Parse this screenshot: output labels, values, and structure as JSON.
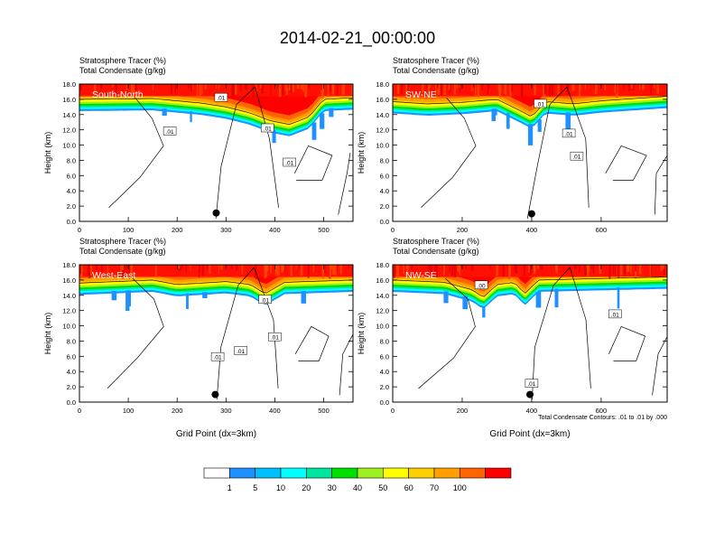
{
  "figure": {
    "title": "2014-02-21_00:00:00",
    "contour_note": "Total Condensate Contours: .01 to .01 by .000"
  },
  "panel_headers": {
    "tracer": "Stratosphere Tracer   (%)",
    "condensate": "Total Condensate   (g/kg)"
  },
  "colorbar": {
    "labels": [
      "1",
      "5",
      "10",
      "20",
      "30",
      "40",
      "50",
      "60",
      "70",
      "100"
    ],
    "colors": [
      "#ffffff",
      "#1e90ff",
      "#00bfff",
      "#00ffff",
      "#00e5a0",
      "#00e000",
      "#a0f020",
      "#ffff00",
      "#ffd000",
      "#ffa000",
      "#ff6400",
      "#ff0000"
    ]
  },
  "chart_data": [
    {
      "type": "heatmap",
      "id": "south-north",
      "panel_label": "South-North",
      "header": [
        "Stratosphere Tracer   (%)",
        "Total Condensate   (g/kg)"
      ],
      "ylabel": "Height (km)",
      "xlabel": "",
      "xlim": [
        0,
        560
      ],
      "ylim": [
        0,
        18
      ],
      "xticks": [
        "0",
        "100",
        "200",
        "300",
        "400",
        "500"
      ],
      "xtick_values": [
        0,
        100,
        200,
        300,
        400,
        500
      ],
      "yticks": [
        "0.0",
        "2.0",
        "4.0",
        "6.0",
        "8.0",
        "10.0",
        "12.0",
        "14.0",
        "16.0",
        "18.0"
      ],
      "tropopause_km": [
        [
          0,
          14.8
        ],
        [
          150,
          14.9
        ],
        [
          250,
          14.3
        ],
        [
          300,
          13.8
        ],
        [
          350,
          13.0
        ],
        [
          390,
          12.0
        ],
        [
          430,
          11.5
        ],
        [
          470,
          12.5
        ],
        [
          500,
          14.8
        ],
        [
          560,
          15.0
        ]
      ],
      "dot": {
        "x": 280,
        "y": 1.1
      },
      "contour_labels": [
        {
          "text": ".01",
          "x": 290,
          "y": 16.2
        },
        {
          "text": ".01",
          "x": 185,
          "y": 11.8
        },
        {
          "text": ".01",
          "x": 385,
          "y": 12.2
        },
        {
          "text": ".01",
          "x": 430,
          "y": 7.7
        }
      ]
    },
    {
      "type": "heatmap",
      "id": "sw-ne",
      "panel_label": "SW-NE",
      "header": [
        "Stratosphere Tracer   (%)",
        "Total Condensate   (g/kg)"
      ],
      "ylabel": "Height (km)",
      "xlabel": "",
      "xlim": [
        0,
        790
      ],
      "ylim": [
        0,
        18
      ],
      "xticks": [
        "0",
        "200",
        "400",
        "600"
      ],
      "xtick_values": [
        0,
        200,
        400,
        600
      ],
      "yticks": [
        "0.0",
        "2.0",
        "4.0",
        "6.0",
        "8.0",
        "10.0",
        "12.0",
        "14.0",
        "16.0",
        "18.0"
      ],
      "tropopause_km": [
        [
          0,
          14.5
        ],
        [
          100,
          14.2
        ],
        [
          200,
          14.4
        ],
        [
          300,
          14.8
        ],
        [
          380,
          13.0
        ],
        [
          400,
          12.5
        ],
        [
          440,
          14.5
        ],
        [
          520,
          14.2
        ],
        [
          600,
          14.6
        ],
        [
          790,
          15.2
        ]
      ],
      "dot": {
        "x": 400,
        "y": 1.0
      },
      "contour_labels": [
        {
          "text": ".01",
          "x": 425,
          "y": 15.4
        },
        {
          "text": ".01",
          "x": 507,
          "y": 11.5
        },
        {
          "text": ".01",
          "x": 530,
          "y": 8.5
        }
      ]
    },
    {
      "type": "heatmap",
      "id": "west-east",
      "panel_label": "West-East",
      "header": [
        "Stratosphere Tracer   (%)",
        "Total Condensate   (g/kg)"
      ],
      "ylabel": "Height (km)",
      "xlabel": "Grid Point (dx=3km)",
      "xlim": [
        0,
        560
      ],
      "ylim": [
        0,
        18
      ],
      "xticks": [
        "0",
        "100",
        "200",
        "300",
        "400",
        "500"
      ],
      "xtick_values": [
        0,
        100,
        200,
        300,
        400,
        500
      ],
      "yticks": [
        "0.0",
        "2.0",
        "4.0",
        "6.0",
        "8.0",
        "10.0",
        "12.0",
        "14.0",
        "16.0",
        "18.0"
      ],
      "tropopause_km": [
        [
          0,
          14.4
        ],
        [
          150,
          14.8
        ],
        [
          200,
          14.2
        ],
        [
          250,
          14.4
        ],
        [
          300,
          14.6
        ],
        [
          350,
          14.2
        ],
        [
          380,
          13.0
        ],
        [
          420,
          14.5
        ],
        [
          560,
          14.8
        ]
      ],
      "dot": {
        "x": 278,
        "y": 1.0
      },
      "contour_labels": [
        {
          "text": ".01",
          "x": 380,
          "y": 13.4
        },
        {
          "text": ".01",
          "x": 400,
          "y": 8.5
        },
        {
          "text": ".01",
          "x": 330,
          "y": 6.7
        },
        {
          "text": ".01",
          "x": 283,
          "y": 5.9
        }
      ]
    },
    {
      "type": "heatmap",
      "id": "nw-se",
      "panel_label": "NW-SE",
      "header": [
        "Stratosphere Tracer   (%)",
        "Total Condensate   (g/kg)"
      ],
      "ylabel": "",
      "xlabel": "Grid Point (dx=3km)",
      "xlim": [
        0,
        790
      ],
      "ylim": [
        0,
        18
      ],
      "xticks": [
        "0",
        "200",
        "400",
        "600"
      ],
      "xtick_values": [
        0,
        200,
        400,
        600
      ],
      "yticks": [
        "0.0",
        "2.0",
        "4.0",
        "6.0",
        "8.0",
        "10.0",
        "12.0",
        "14.0",
        "16.0",
        "18.0"
      ],
      "tropopause_km": [
        [
          0,
          14.8
        ],
        [
          150,
          14.5
        ],
        [
          230,
          13.5
        ],
        [
          260,
          12.5
        ],
        [
          300,
          14.2
        ],
        [
          350,
          14.5
        ],
        [
          380,
          13.0
        ],
        [
          420,
          14.8
        ],
        [
          790,
          15.2
        ]
      ],
      "dot": {
        "x": 395,
        "y": 1.0
      },
      "contour_labels": [
        {
          "text": ".00",
          "x": 255,
          "y": 15.3
        },
        {
          "text": ".01",
          "x": 640,
          "y": 11.5
        },
        {
          "text": ".01",
          "x": 400,
          "y": 2.4
        }
      ]
    }
  ]
}
